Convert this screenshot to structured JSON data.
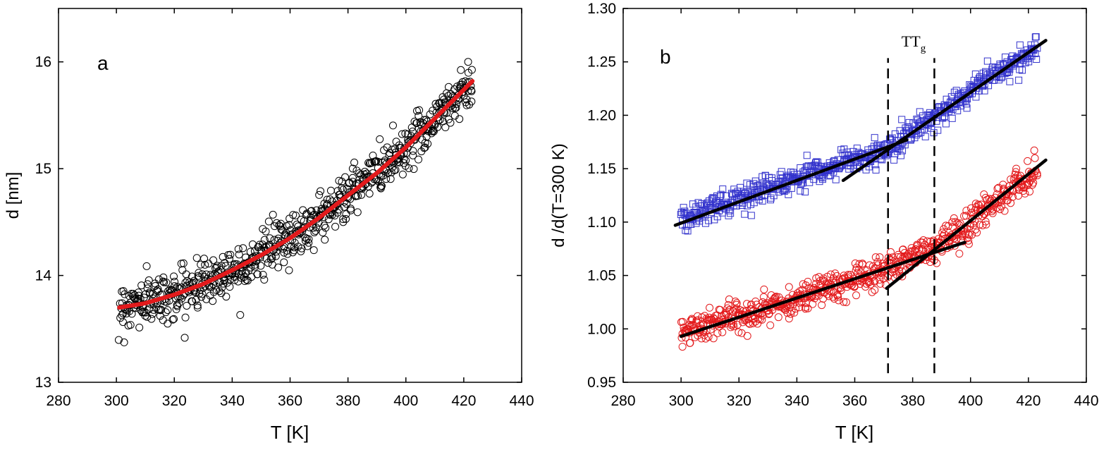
{
  "chart_data": [
    {
      "type": "scatter",
      "panel_label": "a",
      "xlabel": "T [K]",
      "ylabel": "d [nm]",
      "xlim": [
        280,
        440
      ],
      "ylim": [
        13,
        16.5
      ],
      "xticks": [
        280,
        300,
        320,
        340,
        360,
        380,
        400,
        420,
        440
      ],
      "yticks": [
        13,
        14,
        15,
        16
      ],
      "grid": false,
      "series": [
        {
          "marker": "circle-open",
          "color": "#000000",
          "t_range": [
            301,
            423
          ],
          "points_approx": 700,
          "trend": [
            [
              301,
              13.7
            ],
            [
              320,
              13.82
            ],
            [
              340,
              14.05
            ],
            [
              360,
              14.35
            ],
            [
              380,
              14.75
            ],
            [
              400,
              15.2
            ],
            [
              423,
              15.82
            ]
          ],
          "noise": 0.11
        }
      ],
      "fit": {
        "style": "line",
        "color": "#e31a1c",
        "points": [
          [
            301,
            13.7
          ],
          [
            310,
            13.74
          ],
          [
            320,
            13.82
          ],
          [
            330,
            13.92
          ],
          [
            340,
            14.05
          ],
          [
            350,
            14.19
          ],
          [
            360,
            14.35
          ],
          [
            370,
            14.54
          ],
          [
            380,
            14.75
          ],
          [
            390,
            14.96
          ],
          [
            400,
            15.2
          ],
          [
            410,
            15.47
          ],
          [
            423,
            15.82
          ]
        ]
      }
    },
    {
      "type": "scatter",
      "panel_label": "b",
      "xlabel": "T [K]",
      "ylabel": "d /d(T=300 K)",
      "xlim": [
        280,
        440
      ],
      "ylim": [
        0.95,
        1.3
      ],
      "xticks": [
        280,
        300,
        320,
        340,
        360,
        380,
        400,
        420,
        440
      ],
      "yticks": [
        0.95,
        1.0,
        1.05,
        1.1,
        1.15,
        1.2,
        1.25,
        1.3
      ],
      "grid": false,
      "series": [
        {
          "marker": "square-open",
          "color": "#3333cc",
          "t_range": [
            300,
            423
          ],
          "points_approx": 650,
          "trend": [
            [
              300,
              1.102
            ],
            [
              320,
              1.122
            ],
            [
              340,
              1.142
            ],
            [
              360,
              1.158
            ],
            [
              371,
              1.168
            ],
            [
              380,
              1.185
            ],
            [
              400,
              1.222
            ],
            [
              423,
              1.262
            ]
          ],
          "noise": 0.006
        },
        {
          "marker": "circle-open",
          "color": "#e31a1c",
          "t_range": [
            300,
            423
          ],
          "points_approx": 700,
          "trend": [
            [
              300,
              0.998
            ],
            [
              320,
              1.012
            ],
            [
              340,
              1.028
            ],
            [
              360,
              1.046
            ],
            [
              371,
              1.055
            ],
            [
              380,
              1.068
            ],
            [
              387,
              1.074
            ],
            [
              400,
              1.1
            ],
            [
              423,
              1.148
            ]
          ],
          "noise": 0.007
        }
      ],
      "fit_lines": [
        {
          "color": "#000000",
          "points": [
            [
              298,
              1.097
            ],
            [
              378,
              1.177
            ]
          ]
        },
        {
          "color": "#000000",
          "points": [
            [
              356,
              1.139
            ],
            [
              426,
              1.27
            ]
          ]
        },
        {
          "color": "#000000",
          "points": [
            [
              300,
              0.993
            ],
            [
              398,
              1.081
            ]
          ]
        },
        {
          "color": "#000000",
          "points": [
            [
              371,
              1.038
            ],
            [
              426,
              1.158
            ]
          ]
        }
      ],
      "vlines": [
        {
          "x": 371.5,
          "style": "dashed"
        },
        {
          "x": 387.5,
          "style": "dashed"
        }
      ],
      "annotation": {
        "text": "TT",
        "subscript": "g",
        "x": 379.5,
        "y": 1.263
      }
    }
  ]
}
